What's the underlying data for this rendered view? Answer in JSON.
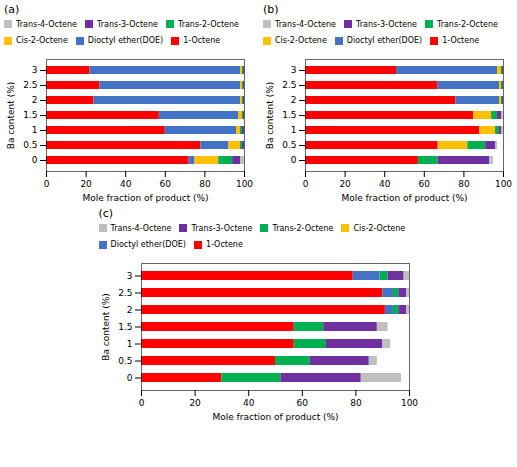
{
  "chart_data": [
    {
      "type": "bar",
      "title": "(a)",
      "orientation": "horizontal",
      "stacked": true,
      "legend": "upper right",
      "categories": [
        0,
        0.5,
        1,
        1.5,
        2,
        2.5,
        3
      ],
      "series": [
        {
          "name": "1-Octene",
          "color": "#FF0000",
          "values": [
            72,
            78,
            60,
            57,
            24,
            27,
            22
          ]
        },
        {
          "name": "Dioctyl ether(DOE)",
          "color": "#4472C4",
          "values": [
            3,
            14,
            36,
            40,
            74,
            71,
            76
          ]
        },
        {
          "name": "Cis-2-Octene",
          "color": "#FFC000",
          "values": [
            12,
            6,
            2,
            2,
            1,
            1,
            1
          ]
        },
        {
          "name": "Trans-2-Octene",
          "color": "#00B050",
          "values": [
            7,
            1,
            1,
            0.5,
            0.5,
            0.5,
            0.5
          ]
        },
        {
          "name": "Trans-3-Octene",
          "color": "#7030A0",
          "values": [
            4,
            1,
            1,
            0.5,
            0.5,
            0.5,
            0.5
          ]
        },
        {
          "name": "Trans-4-Octene",
          "color": "#BFBFBF",
          "values": [
            2,
            0,
            0,
            0,
            0,
            0,
            0
          ]
        }
      ],
      "xlim": [
        0,
        100
      ],
      "xticks": [
        0,
        20,
        40,
        60,
        80,
        100
      ],
      "xlabel": "Mole fraction of product (%)",
      "ylabel": "Ba content (%)"
    },
    {
      "type": "bar",
      "title": "(b)",
      "orientation": "horizontal",
      "stacked": true,
      "legend": "upper right",
      "categories": [
        0,
        0.5,
        1,
        1.5,
        2,
        2.5,
        3
      ],
      "series": [
        {
          "name": "1-Octene",
          "color": "#FF0000",
          "values": [
            57,
            67,
            88,
            85,
            76,
            67,
            46
          ]
        },
        {
          "name": "Dioctyl ether(DOE)",
          "color": "#4472C4",
          "values": [
            0,
            0,
            0,
            0,
            22,
            31,
            51
          ]
        },
        {
          "name": "Cis-2-Octene",
          "color": "#FFC000",
          "values": [
            0,
            15,
            8,
            9,
            1,
            1,
            2
          ]
        },
        {
          "name": "Trans-2-Octene",
          "color": "#00B050",
          "values": [
            10,
            9,
            2,
            3,
            0.5,
            0.5,
            0.5
          ]
        },
        {
          "name": "Trans-3-Octene",
          "color": "#7030A0",
          "values": [
            26,
            5,
            1,
            2,
            0.5,
            0.5,
            0.5
          ]
        },
        {
          "name": "Trans-4-Octene",
          "color": "#BFBFBF",
          "values": [
            2,
            1,
            1,
            1,
            0,
            0,
            0
          ]
        }
      ],
      "xlim": [
        0,
        100
      ],
      "xticks": [
        0,
        20,
        40,
        60,
        80,
        100
      ],
      "xlabel": "Mole fraction of product (%)",
      "ylabel": "Ba content (%)"
    },
    {
      "type": "bar",
      "title": "(c)",
      "orientation": "horizontal",
      "stacked": true,
      "legend": "upper right",
      "categories": [
        0,
        0.5,
        1,
        1.5,
        2,
        2.5,
        3
      ],
      "series": [
        {
          "name": "1-Octene",
          "color": "#FF0000",
          "values": [
            30,
            50,
            57,
            57,
            91,
            90,
            79
          ]
        },
        {
          "name": "Dioctyl ether(DOE)",
          "color": "#4472C4",
          "values": [
            0,
            0,
            0,
            0,
            3,
            4,
            10
          ]
        },
        {
          "name": "Cis-2-Octene",
          "color": "#FFC000",
          "values": [
            0,
            0,
            0,
            0,
            0,
            0,
            0
          ]
        },
        {
          "name": "Trans-2-Octene",
          "color": "#00B050",
          "values": [
            22,
            13,
            12,
            11,
            2,
            2,
            3
          ]
        },
        {
          "name": "Trans-3-Octene",
          "color": "#7030A0",
          "values": [
            30,
            22,
            21,
            20,
            3,
            3,
            6
          ]
        },
        {
          "name": "Trans-4-Octene",
          "color": "#BFBFBF",
          "values": [
            15,
            3,
            3,
            4,
            1,
            1,
            2
          ]
        }
      ],
      "xlim": [
        0,
        100
      ],
      "xticks": [
        0,
        20,
        40,
        60,
        80,
        100
      ],
      "xlabel": "Mole fraction of product (%)",
      "ylabel": "Ba content (%)"
    }
  ]
}
